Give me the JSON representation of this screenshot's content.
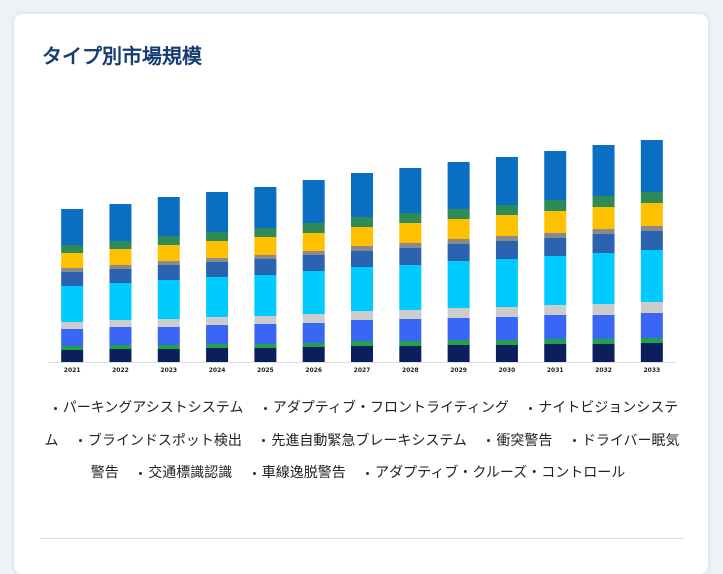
{
  "title": "タイプ別市場規模",
  "chart_data": {
    "type": "stacked-bar",
    "categories": [
      "2021",
      "2022",
      "2023",
      "2024",
      "2025",
      "2026",
      "2027",
      "2028",
      "2029",
      "2030",
      "2031",
      "2032",
      "2033"
    ],
    "series": [
      {
        "name": "パーキングアシストシステム",
        "color": "#0b1f5e",
        "values": [
          12,
          13,
          13,
          14,
          14,
          15,
          16,
          16,
          17,
          17,
          18,
          18,
          19
        ]
      },
      {
        "name": "アダプティブ・フロントライティング",
        "color": "#22a04b",
        "values": [
          4,
          4,
          4,
          4,
          4,
          4,
          5,
          5,
          5,
          5,
          5,
          5,
          5
        ]
      },
      {
        "name": "ナイトビジョンシステム",
        "color": "#3a66f5",
        "values": [
          17,
          18,
          18,
          19,
          20,
          20,
          21,
          22,
          22,
          23,
          24,
          24,
          25
        ]
      },
      {
        "name": "ブラインドスポット検出",
        "color": "#cccccc",
        "values": [
          7,
          7,
          8,
          8,
          8,
          9,
          9,
          9,
          10,
          10,
          10,
          11,
          11
        ]
      },
      {
        "name": "先進自動緊急ブレーキシステム",
        "color": "#00cbff",
        "values": [
          36,
          37,
          39,
          40,
          41,
          43,
          44,
          45,
          47,
          48,
          49,
          51,
          52
        ]
      },
      {
        "name": "衝突警告",
        "color": "#2b63b0",
        "values": [
          14,
          14,
          15,
          15,
          16,
          16,
          16,
          17,
          17,
          18,
          18,
          19,
          19
        ]
      },
      {
        "name": "ドライバー眠気警告",
        "color": "#8a8a8a",
        "values": [
          4,
          4,
          4,
          4,
          4,
          4,
          5,
          5,
          5,
          5,
          5,
          5,
          5
        ]
      },
      {
        "name": "交通標識認識",
        "color": "#ffc000",
        "values": [
          15,
          16,
          16,
          17,
          18,
          18,
          19,
          20,
          20,
          21,
          22,
          22,
          23
        ]
      },
      {
        "name": "車線逸脱警告",
        "color": "#2e8b57",
        "values": [
          8,
          8,
          9,
          9,
          9,
          10,
          10,
          10,
          10,
          10,
          11,
          11,
          11
        ]
      },
      {
        "name": "アダプティブ・クルーズ・コントロール",
        "color": "#0a6fc2",
        "values": [
          36,
          37,
          39,
          40,
          41,
          43,
          44,
          45,
          47,
          48,
          49,
          51,
          52
        ]
      }
    ]
  }
}
